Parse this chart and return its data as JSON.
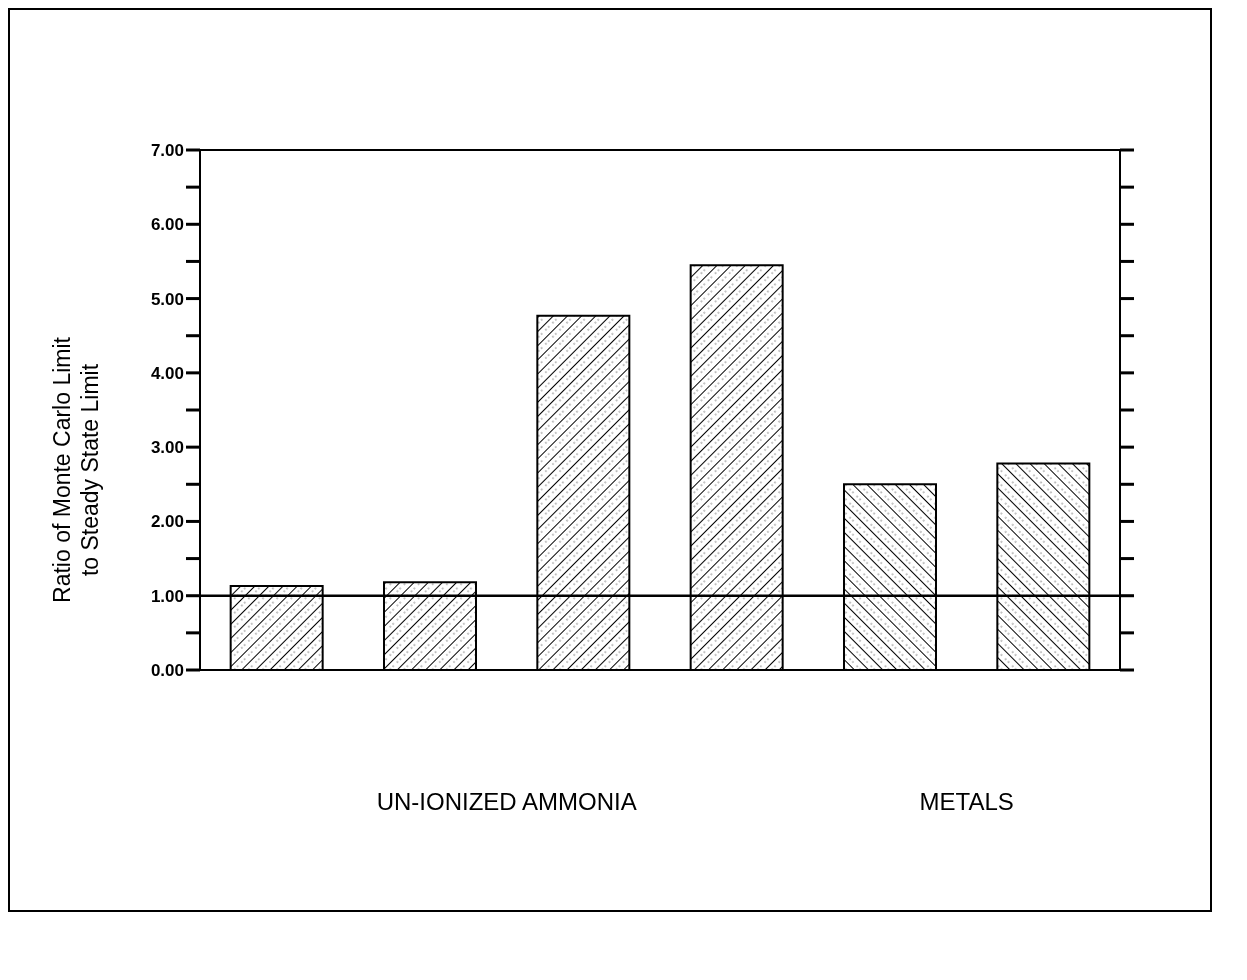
{
  "chart_data": {
    "type": "bar",
    "ylabel": "Ratio of Monte Carlo Limit\nto Steady State Limit",
    "categories": [
      null,
      null,
      null,
      null,
      null,
      null
    ],
    "values": [
      1.13,
      1.18,
      4.77,
      5.45,
      2.5,
      2.78
    ],
    "colors": [
      "#000000",
      "#000000",
      "#000000",
      "#000000",
      "#000000",
      "#000000"
    ],
    "ylim": [
      0,
      7
    ],
    "yticks": [
      {
        "value": 0,
        "label": "0.00"
      },
      {
        "value": 0.5,
        "label": null
      },
      {
        "value": 1,
        "label": "1.00"
      },
      {
        "value": 1.5,
        "label": null
      },
      {
        "value": 2,
        "label": "2.00"
      },
      {
        "value": 2.5,
        "label": null
      },
      {
        "value": 3,
        "label": "3.00"
      },
      {
        "value": 3.5,
        "label": null
      },
      {
        "value": 4,
        "label": "4.00"
      },
      {
        "value": 4.5,
        "label": null
      },
      {
        "value": 5,
        "label": "5.00"
      },
      {
        "value": 5.5,
        "label": null
      },
      {
        "value": 6,
        "label": "6.00"
      },
      {
        "value": 6.5,
        "label": null
      },
      {
        "value": 7,
        "label": "7.00"
      }
    ],
    "ref_lines": [
      {
        "axis": "y",
        "value": 1,
        "color": "#000000"
      }
    ],
    "annotations": [
      "UN-IONIZED AMMONIA",
      "METALS"
    ],
    "grid": false,
    "legend": false
  }
}
